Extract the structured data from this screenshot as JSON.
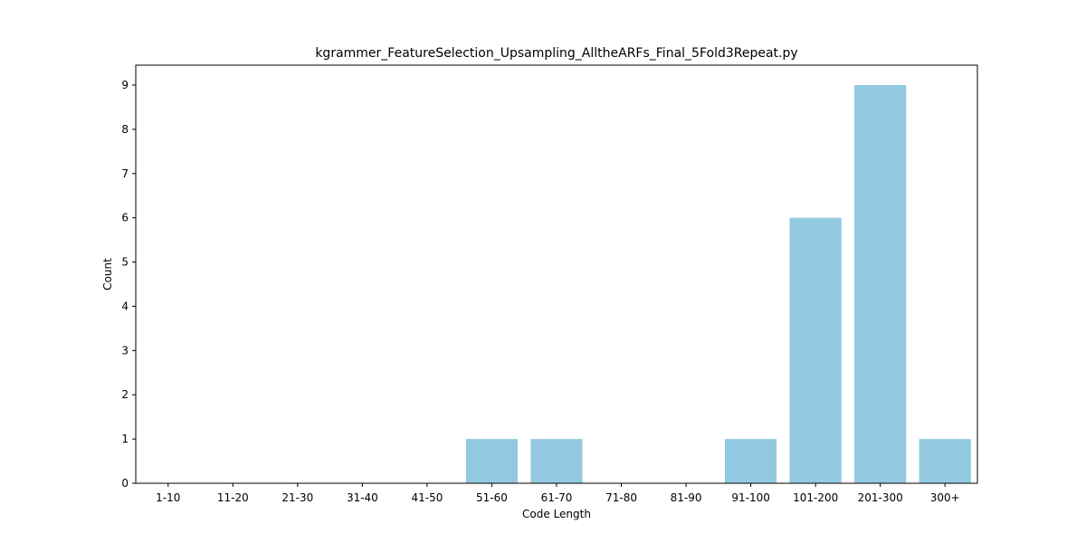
{
  "chart_data": {
    "type": "bar",
    "title": "kgrammer_FeatureSelection_Upsampling_AlltheARFs_Final_5Fold3Repeat.py",
    "xlabel": "Code Length",
    "ylabel": "Count",
    "categories": [
      "1-10",
      "11-20",
      "21-30",
      "31-40",
      "41-50",
      "51-60",
      "61-70",
      "71-80",
      "81-90",
      "91-100",
      "101-200",
      "201-300",
      "300+"
    ],
    "values": [
      0,
      0,
      0,
      0,
      0,
      1,
      1,
      0,
      0,
      1,
      6,
      9,
      1
    ],
    "ylim": [
      0,
      9.45
    ],
    "yticks": [
      0,
      1,
      2,
      3,
      4,
      5,
      6,
      7,
      8,
      9
    ],
    "bar_color": "#92c9e0",
    "grid": false
  }
}
